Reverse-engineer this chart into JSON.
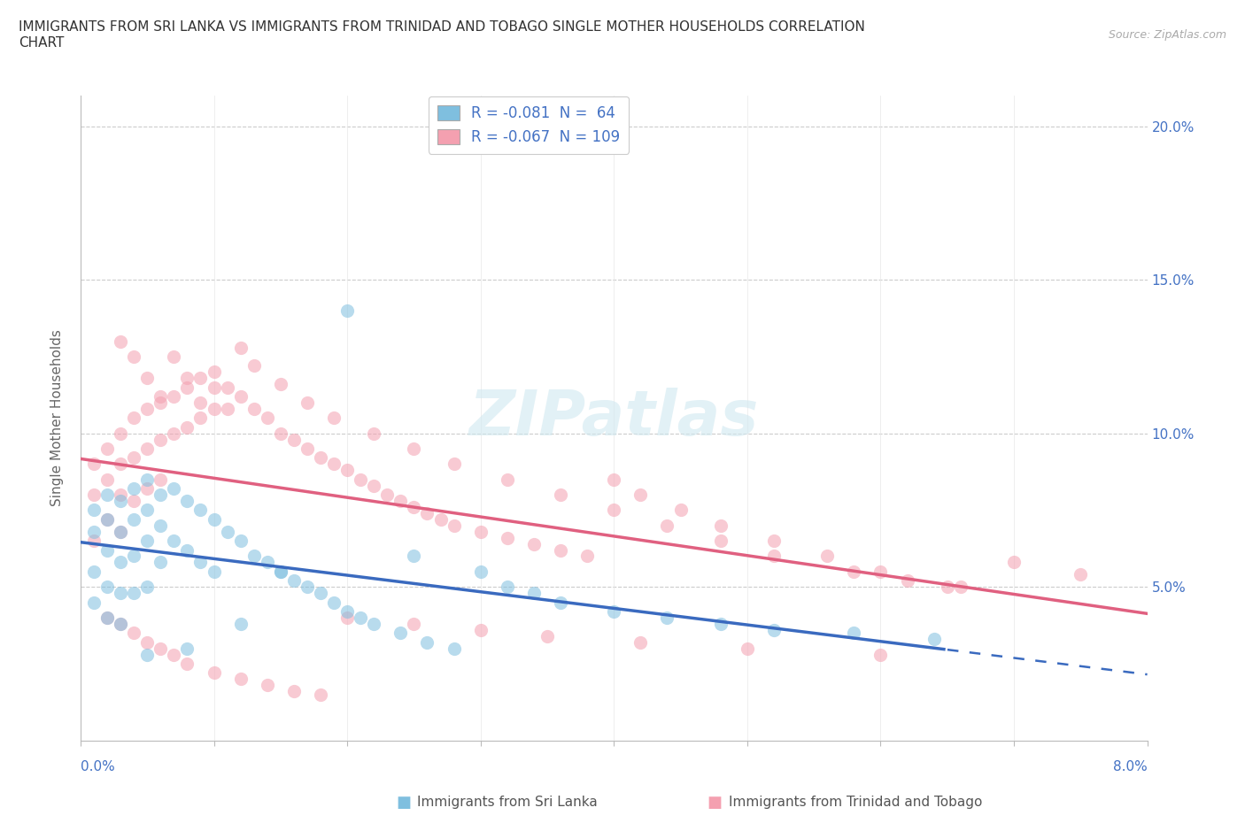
{
  "title": "IMMIGRANTS FROM SRI LANKA VS IMMIGRANTS FROM TRINIDAD AND TOBAGO SINGLE MOTHER HOUSEHOLDS CORRELATION\nCHART",
  "source_text": "Source: ZipAtlas.com",
  "ylabel": "Single Mother Households",
  "xlim": [
    0.0,
    0.08
  ],
  "ylim": [
    0.0,
    0.21
  ],
  "color_sri_lanka": "#7fbfdf",
  "color_trinidad": "#f4a0b0",
  "color_line_sl": "#3a6abf",
  "color_line_tt": "#e06080",
  "watermark_text": "ZIPatlas",
  "sri_lanka_x": [
    0.001,
    0.001,
    0.001,
    0.001,
    0.002,
    0.002,
    0.002,
    0.002,
    0.002,
    0.003,
    0.003,
    0.003,
    0.003,
    0.003,
    0.004,
    0.004,
    0.004,
    0.004,
    0.005,
    0.005,
    0.005,
    0.005,
    0.006,
    0.006,
    0.006,
    0.007,
    0.007,
    0.008,
    0.008,
    0.009,
    0.009,
    0.01,
    0.01,
    0.011,
    0.012,
    0.013,
    0.014,
    0.015,
    0.016,
    0.017,
    0.018,
    0.019,
    0.02,
    0.021,
    0.022,
    0.024,
    0.026,
    0.028,
    0.03,
    0.032,
    0.034,
    0.036,
    0.04,
    0.044,
    0.048,
    0.052,
    0.058,
    0.064,
    0.02,
    0.025,
    0.015,
    0.012,
    0.008,
    0.005
  ],
  "sri_lanka_y": [
    0.075,
    0.068,
    0.055,
    0.045,
    0.08,
    0.072,
    0.062,
    0.05,
    0.04,
    0.078,
    0.068,
    0.058,
    0.048,
    0.038,
    0.082,
    0.072,
    0.06,
    0.048,
    0.085,
    0.075,
    0.065,
    0.05,
    0.08,
    0.07,
    0.058,
    0.082,
    0.065,
    0.078,
    0.062,
    0.075,
    0.058,
    0.072,
    0.055,
    0.068,
    0.065,
    0.06,
    0.058,
    0.055,
    0.052,
    0.05,
    0.048,
    0.045,
    0.042,
    0.04,
    0.038,
    0.035,
    0.032,
    0.03,
    0.055,
    0.05,
    0.048,
    0.045,
    0.042,
    0.04,
    0.038,
    0.036,
    0.035,
    0.033,
    0.14,
    0.06,
    0.055,
    0.038,
    0.03,
    0.028
  ],
  "trinidad_x": [
    0.001,
    0.001,
    0.001,
    0.002,
    0.002,
    0.002,
    0.003,
    0.003,
    0.003,
    0.003,
    0.004,
    0.004,
    0.004,
    0.005,
    0.005,
    0.005,
    0.006,
    0.006,
    0.006,
    0.007,
    0.007,
    0.008,
    0.008,
    0.009,
    0.009,
    0.01,
    0.01,
    0.011,
    0.012,
    0.013,
    0.014,
    0.015,
    0.016,
    0.017,
    0.018,
    0.019,
    0.02,
    0.021,
    0.022,
    0.023,
    0.024,
    0.025,
    0.026,
    0.027,
    0.028,
    0.03,
    0.032,
    0.034,
    0.036,
    0.038,
    0.04,
    0.042,
    0.045,
    0.048,
    0.052,
    0.056,
    0.06,
    0.065,
    0.07,
    0.075,
    0.003,
    0.004,
    0.005,
    0.006,
    0.007,
    0.008,
    0.009,
    0.01,
    0.011,
    0.012,
    0.013,
    0.015,
    0.017,
    0.019,
    0.022,
    0.025,
    0.028,
    0.032,
    0.036,
    0.04,
    0.044,
    0.048,
    0.052,
    0.058,
    0.062,
    0.066,
    0.002,
    0.003,
    0.004,
    0.005,
    0.006,
    0.007,
    0.008,
    0.01,
    0.012,
    0.014,
    0.016,
    0.018,
    0.02,
    0.025,
    0.03,
    0.035,
    0.042,
    0.05,
    0.06
  ],
  "trinidad_y": [
    0.09,
    0.08,
    0.065,
    0.095,
    0.085,
    0.072,
    0.1,
    0.09,
    0.08,
    0.068,
    0.105,
    0.092,
    0.078,
    0.108,
    0.095,
    0.082,
    0.11,
    0.098,
    0.085,
    0.112,
    0.1,
    0.115,
    0.102,
    0.118,
    0.105,
    0.12,
    0.108,
    0.115,
    0.112,
    0.108,
    0.105,
    0.1,
    0.098,
    0.095,
    0.092,
    0.09,
    0.088,
    0.085,
    0.083,
    0.08,
    0.078,
    0.076,
    0.074,
    0.072,
    0.07,
    0.068,
    0.066,
    0.064,
    0.062,
    0.06,
    0.085,
    0.08,
    0.075,
    0.07,
    0.065,
    0.06,
    0.055,
    0.05,
    0.058,
    0.054,
    0.13,
    0.125,
    0.118,
    0.112,
    0.125,
    0.118,
    0.11,
    0.115,
    0.108,
    0.128,
    0.122,
    0.116,
    0.11,
    0.105,
    0.1,
    0.095,
    0.09,
    0.085,
    0.08,
    0.075,
    0.07,
    0.065,
    0.06,
    0.055,
    0.052,
    0.05,
    0.04,
    0.038,
    0.035,
    0.032,
    0.03,
    0.028,
    0.025,
    0.022,
    0.02,
    0.018,
    0.016,
    0.015,
    0.04,
    0.038,
    0.036,
    0.034,
    0.032,
    0.03,
    0.028
  ]
}
